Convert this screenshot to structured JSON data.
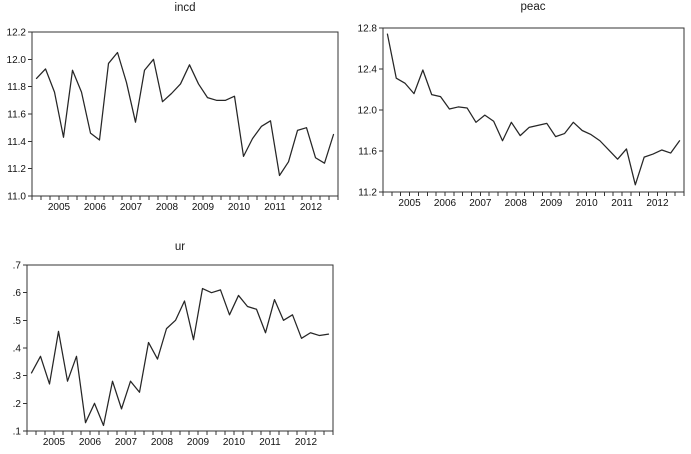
{
  "page": {
    "background": "#ffffff"
  },
  "colors": {
    "line": "#262626",
    "axis": "#333333",
    "text": "#111111"
  },
  "chart_data": [
    {
      "type": "line",
      "title": "incd",
      "frequency": "quarterly",
      "x_range_years": [
        2004.75,
        2013.25
      ],
      "x_tick_labels": [
        "2005",
        "2006",
        "2007",
        "2008",
        "2009",
        "2010",
        "2011",
        "2012"
      ],
      "y_tick_labels": [
        "12.2",
        "12.0",
        "11.8",
        "11.6",
        "11.4",
        "11.2",
        "11.0"
      ],
      "y_tick_values": [
        12.2,
        12.0,
        11.8,
        11.6,
        11.4,
        11.2,
        11.0
      ],
      "ylim": [
        11.0,
        12.2
      ],
      "grid": false,
      "legend": false,
      "values": [
        11.86,
        11.93,
        11.76,
        11.43,
        11.92,
        11.76,
        11.46,
        11.41,
        11.97,
        12.05,
        11.83,
        11.54,
        11.92,
        12.0,
        11.69,
        11.75,
        11.82,
        11.96,
        11.82,
        11.72,
        11.7,
        11.7,
        11.73,
        11.29,
        11.42,
        11.51,
        11.55,
        11.15,
        11.25,
        11.48,
        11.5,
        11.28,
        11.24,
        11.45
      ]
    },
    {
      "type": "line",
      "title": "peac",
      "frequency": "quarterly",
      "x_range_years": [
        2004.75,
        2013.25
      ],
      "x_tick_labels": [
        "2005",
        "2006",
        "2007",
        "2008",
        "2009",
        "2010",
        "2011",
        "2012"
      ],
      "y_tick_labels": [
        "12.8",
        "12.4",
        "12.0",
        "11.6",
        "11.2"
      ],
      "y_tick_values": [
        12.8,
        12.4,
        12.0,
        11.6,
        11.2
      ],
      "ylim": [
        11.2,
        12.8
      ],
      "grid": false,
      "legend": false,
      "values": [
        12.74,
        12.31,
        12.26,
        12.16,
        12.39,
        12.15,
        12.13,
        12.01,
        12.03,
        12.02,
        11.88,
        11.95,
        11.89,
        11.7,
        11.88,
        11.75,
        11.83,
        11.85,
        11.87,
        11.74,
        11.77,
        11.88,
        11.8,
        11.76,
        11.7,
        11.61,
        11.52,
        11.62,
        11.27,
        11.54,
        11.57,
        11.61,
        11.58,
        11.7
      ]
    },
    {
      "type": "line",
      "title": "ur",
      "frequency": "quarterly",
      "x_range_years": [
        2004.75,
        2013.25
      ],
      "x_tick_labels": [
        "2005",
        "2006",
        "2007",
        "2008",
        "2009",
        "2010",
        "2011",
        "2012"
      ],
      "y_tick_labels": [
        ".7",
        ".6",
        ".5",
        ".4",
        ".3",
        ".2",
        ".1"
      ],
      "y_tick_values": [
        0.7,
        0.6,
        0.5,
        0.4,
        0.3,
        0.2,
        0.1
      ],
      "ylim": [
        0.1,
        0.7
      ],
      "grid": false,
      "legend": false,
      "values": [
        0.31,
        0.37,
        0.27,
        0.46,
        0.28,
        0.37,
        0.13,
        0.2,
        0.12,
        0.28,
        0.18,
        0.28,
        0.24,
        0.42,
        0.36,
        0.47,
        0.5,
        0.57,
        0.43,
        0.615,
        0.6,
        0.61,
        0.52,
        0.59,
        0.55,
        0.54,
        0.455,
        0.575,
        0.5,
        0.52,
        0.435,
        0.455,
        0.445,
        0.45
      ]
    }
  ]
}
